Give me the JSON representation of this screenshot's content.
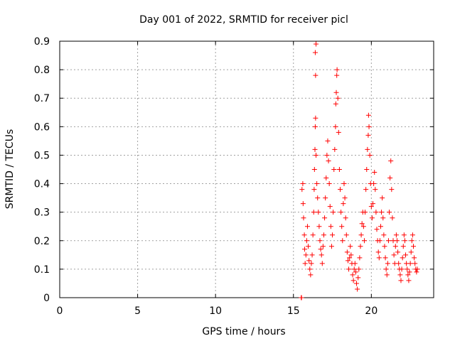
{
  "chart_data": {
    "type": "scatter",
    "title": "Day 001 of 2022, SRMTID for receiver picl",
    "xlabel": "GPS time / hours",
    "ylabel": "SRMTID / TECUs",
    "xlim": [
      0,
      24
    ],
    "ylim": [
      0,
      0.9
    ],
    "x_ticks": [
      {
        "value": 0,
        "label": "0"
      },
      {
        "value": 5,
        "label": "5"
      },
      {
        "value": 10,
        "label": "10"
      },
      {
        "value": 15,
        "label": "15"
      },
      {
        "value": 20,
        "label": "20"
      }
    ],
    "y_ticks": [
      {
        "value": 0,
        "label": "0"
      },
      {
        "value": 0.1,
        "label": "0.1"
      },
      {
        "value": 0.2,
        "label": "0.2"
      },
      {
        "value": 0.3,
        "label": "0.3"
      },
      {
        "value": 0.4,
        "label": "0.4"
      },
      {
        "value": 0.5,
        "label": "0.5"
      },
      {
        "value": 0.6,
        "label": "0.6"
      },
      {
        "value": 0.7,
        "label": "0.7"
      },
      {
        "value": 0.8,
        "label": "0.8"
      },
      {
        "value": 0.9,
        "label": "0.9"
      }
    ],
    "grid": true,
    "marker": "+",
    "color": "#ff0000",
    "series": [
      {
        "name": "SRMTID",
        "points": [
          [
            15.5,
            0.0
          ],
          [
            15.52,
            0.0
          ],
          [
            15.55,
            0.38
          ],
          [
            15.6,
            0.4
          ],
          [
            15.62,
            0.33
          ],
          [
            15.65,
            0.28
          ],
          [
            15.7,
            0.22
          ],
          [
            15.72,
            0.17
          ],
          [
            15.75,
            0.12
          ],
          [
            15.8,
            0.15
          ],
          [
            15.85,
            0.2
          ],
          [
            15.9,
            0.25
          ],
          [
            15.95,
            0.18
          ],
          [
            16.0,
            0.13
          ],
          [
            16.05,
            0.1
          ],
          [
            16.1,
            0.08
          ],
          [
            16.15,
            0.12
          ],
          [
            16.2,
            0.15
          ],
          [
            16.25,
            0.22
          ],
          [
            16.3,
            0.3
          ],
          [
            16.33,
            0.38
          ],
          [
            16.35,
            0.45
          ],
          [
            16.38,
            0.52
          ],
          [
            16.4,
            0.6
          ],
          [
            16.42,
            0.63
          ],
          [
            16.45,
            0.5
          ],
          [
            16.4,
            0.86
          ],
          [
            16.45,
            0.89
          ],
          [
            16.42,
            0.78
          ],
          [
            16.5,
            0.4
          ],
          [
            16.55,
            0.35
          ],
          [
            16.6,
            0.3
          ],
          [
            16.65,
            0.25
          ],
          [
            16.7,
            0.2
          ],
          [
            16.75,
            0.17
          ],
          [
            16.8,
            0.15
          ],
          [
            16.85,
            0.12
          ],
          [
            16.9,
            0.18
          ],
          [
            16.95,
            0.22
          ],
          [
            17.0,
            0.28
          ],
          [
            17.05,
            0.35
          ],
          [
            17.1,
            0.42
          ],
          [
            17.15,
            0.5
          ],
          [
            17.2,
            0.55
          ],
          [
            17.25,
            0.48
          ],
          [
            17.3,
            0.4
          ],
          [
            17.35,
            0.32
          ],
          [
            17.4,
            0.25
          ],
          [
            17.45,
            0.18
          ],
          [
            17.5,
            0.22
          ],
          [
            17.55,
            0.3
          ],
          [
            17.6,
            0.45
          ],
          [
            17.65,
            0.52
          ],
          [
            17.7,
            0.6
          ],
          [
            17.72,
            0.68
          ],
          [
            17.75,
            0.72
          ],
          [
            17.78,
            0.78
          ],
          [
            17.8,
            0.8
          ],
          [
            17.85,
            0.7
          ],
          [
            17.9,
            0.58
          ],
          [
            17.95,
            0.45
          ],
          [
            18.0,
            0.38
          ],
          [
            18.05,
            0.3
          ],
          [
            18.1,
            0.25
          ],
          [
            18.15,
            0.2
          ],
          [
            18.2,
            0.33
          ],
          [
            18.25,
            0.4
          ],
          [
            18.3,
            0.35
          ],
          [
            18.35,
            0.28
          ],
          [
            18.4,
            0.22
          ],
          [
            18.45,
            0.16
          ],
          [
            18.5,
            0.13
          ],
          [
            18.55,
            0.1
          ],
          [
            18.6,
            0.14
          ],
          [
            18.65,
            0.18
          ],
          [
            18.7,
            0.15
          ],
          [
            18.75,
            0.12
          ],
          [
            18.8,
            0.08
          ],
          [
            18.85,
            0.06
          ],
          [
            18.9,
            0.1
          ],
          [
            18.95,
            0.12
          ],
          [
            19.0,
            0.09
          ],
          [
            19.05,
            0.05
          ],
          [
            19.1,
            0.03
          ],
          [
            19.15,
            0.07
          ],
          [
            19.2,
            0.1
          ],
          [
            19.25,
            0.14
          ],
          [
            19.3,
            0.18
          ],
          [
            19.35,
            0.22
          ],
          [
            19.4,
            0.26
          ],
          [
            19.45,
            0.3
          ],
          [
            19.5,
            0.25
          ],
          [
            19.55,
            0.2
          ],
          [
            19.6,
            0.3
          ],
          [
            19.65,
            0.38
          ],
          [
            19.7,
            0.45
          ],
          [
            19.75,
            0.52
          ],
          [
            19.8,
            0.57
          ],
          [
            19.82,
            0.64
          ],
          [
            19.85,
            0.6
          ],
          [
            19.9,
            0.5
          ],
          [
            19.95,
            0.4
          ],
          [
            20.0,
            0.32
          ],
          [
            20.05,
            0.28
          ],
          [
            20.1,
            0.33
          ],
          [
            20.15,
            0.4
          ],
          [
            20.2,
            0.44
          ],
          [
            20.25,
            0.38
          ],
          [
            20.3,
            0.3
          ],
          [
            20.35,
            0.24
          ],
          [
            20.4,
            0.2
          ],
          [
            20.45,
            0.16
          ],
          [
            20.5,
            0.14
          ],
          [
            20.55,
            0.2
          ],
          [
            20.6,
            0.25
          ],
          [
            20.65,
            0.3
          ],
          [
            20.7,
            0.35
          ],
          [
            20.75,
            0.28
          ],
          [
            20.8,
            0.22
          ],
          [
            20.85,
            0.18
          ],
          [
            20.9,
            0.14
          ],
          [
            20.95,
            0.1
          ],
          [
            21.0,
            0.08
          ],
          [
            21.05,
            0.12
          ],
          [
            21.1,
            0.2
          ],
          [
            21.15,
            0.3
          ],
          [
            21.2,
            0.42
          ],
          [
            21.25,
            0.48
          ],
          [
            21.3,
            0.38
          ],
          [
            21.35,
            0.28
          ],
          [
            21.4,
            0.2
          ],
          [
            21.45,
            0.15
          ],
          [
            21.5,
            0.12
          ],
          [
            21.55,
            0.18
          ],
          [
            21.6,
            0.22
          ],
          [
            21.65,
            0.2
          ],
          [
            21.7,
            0.16
          ],
          [
            21.75,
            0.12
          ],
          [
            21.8,
            0.1
          ],
          [
            21.85,
            0.08
          ],
          [
            21.9,
            0.06
          ],
          [
            21.95,
            0.1
          ],
          [
            22.0,
            0.14
          ],
          [
            22.05,
            0.18
          ],
          [
            22.1,
            0.22
          ],
          [
            22.15,
            0.2
          ],
          [
            22.2,
            0.15
          ],
          [
            22.25,
            0.12
          ],
          [
            22.3,
            0.1
          ],
          [
            22.35,
            0.08
          ],
          [
            22.4,
            0.06
          ],
          [
            22.45,
            0.09
          ],
          [
            22.5,
            0.12
          ],
          [
            22.55,
            0.16
          ],
          [
            22.6,
            0.2
          ],
          [
            22.65,
            0.22
          ],
          [
            22.7,
            0.18
          ],
          [
            22.75,
            0.14
          ],
          [
            22.8,
            0.12
          ],
          [
            22.85,
            0.1
          ],
          [
            22.9,
            0.09
          ],
          [
            22.95,
            0.1
          ]
        ]
      }
    ]
  }
}
